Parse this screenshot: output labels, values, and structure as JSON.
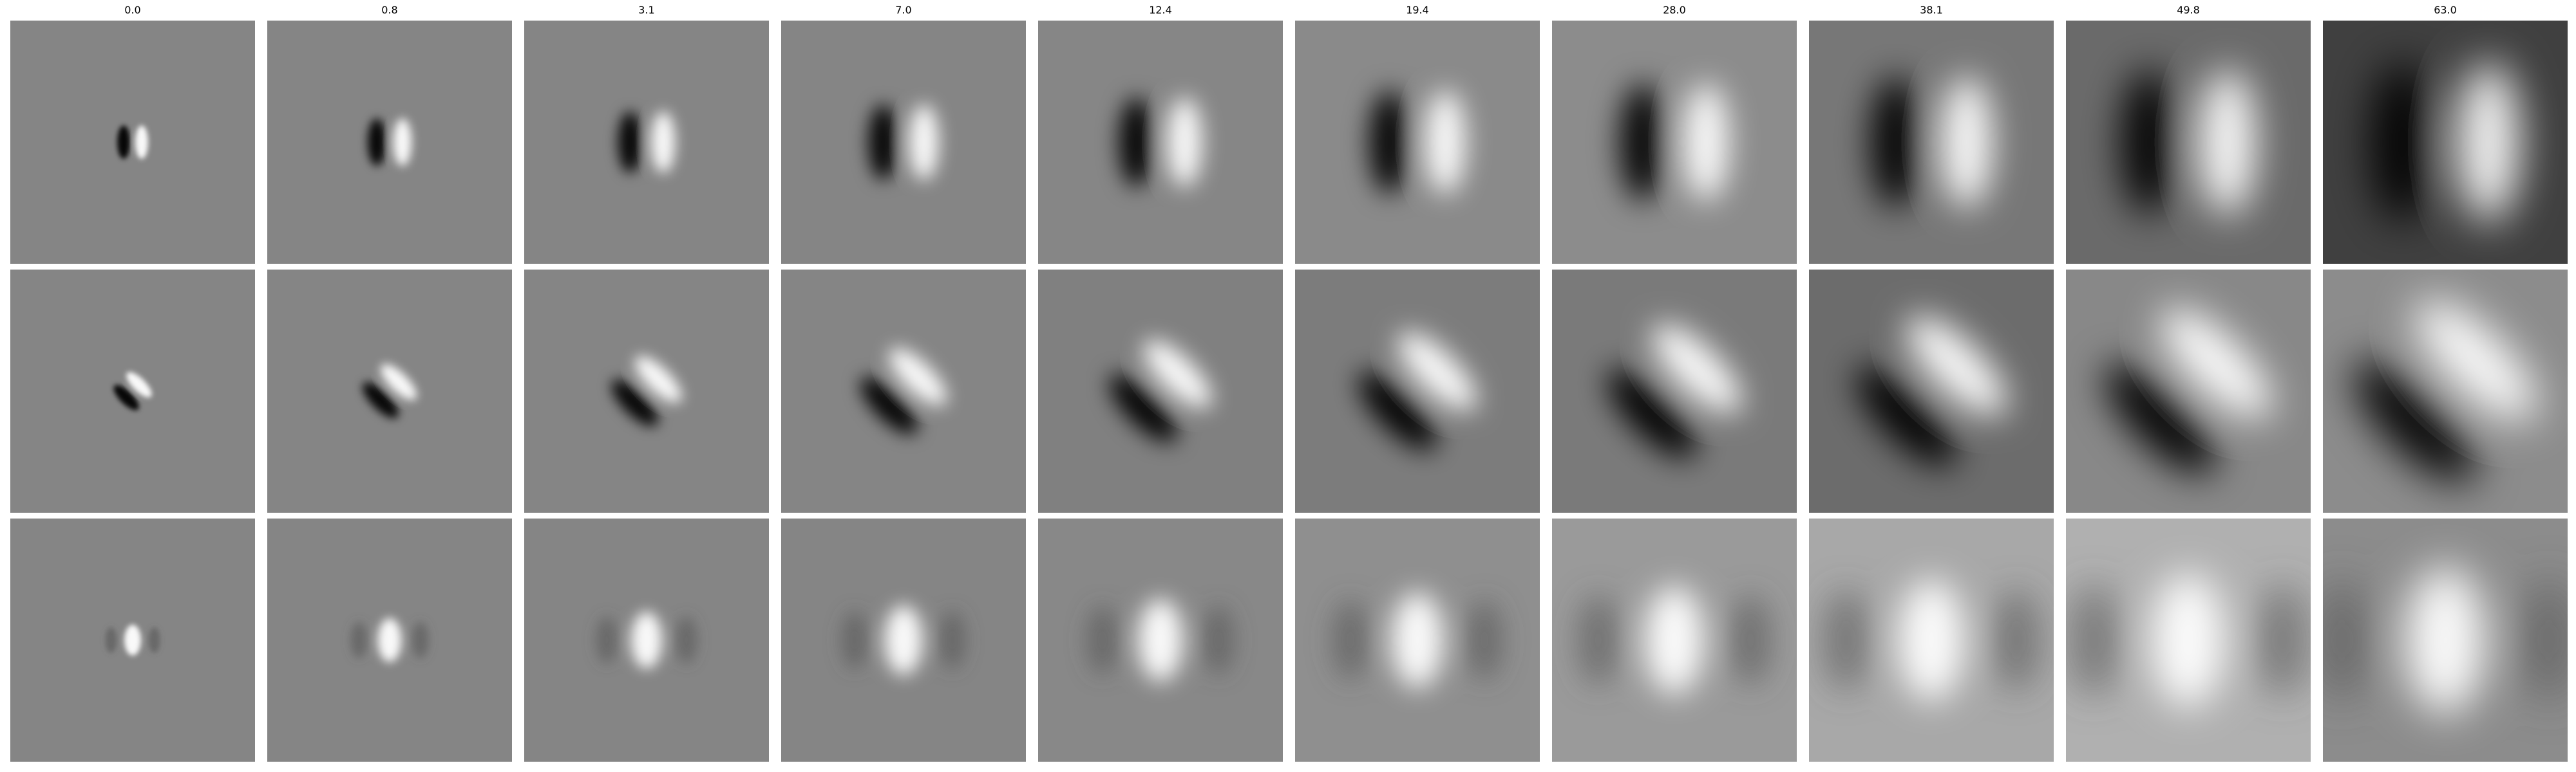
{
  "figure": {
    "column_titles": [
      "0.0",
      "0.8",
      "3.1",
      "7.0",
      "12.4",
      "19.4",
      "28.0",
      "38.1",
      "49.8",
      "63.0"
    ],
    "rows": [
      {
        "name": "row-1",
        "orientation_deg": 90,
        "polarity": [
          1,
          1,
          1,
          1,
          1,
          1,
          1,
          1,
          1,
          1
        ],
        "background": [
          "#858585",
          "#858585",
          "#858585",
          "#858585",
          "#868686",
          "#8a8a8a",
          "#8c8c8c",
          "#777777",
          "#6a6a6a",
          "#404040"
        ]
      },
      {
        "name": "row-2",
        "orientation_deg": 45,
        "polarity": [
          1,
          1,
          1,
          1,
          1,
          1,
          1,
          1,
          1,
          1
        ],
        "background": [
          "#858585",
          "#858585",
          "#858585",
          "#858585",
          "#808080",
          "#7c7c7c",
          "#7a7a7a",
          "#6c6c6c",
          "#888888",
          "#8c8c8c"
        ]
      },
      {
        "name": "row-3",
        "orientation_deg": 90,
        "polarity": [
          0,
          0,
          0,
          0,
          0,
          0,
          0,
          0,
          0,
          0
        ],
        "background": [
          "#858585",
          "#858585",
          "#858585",
          "#858585",
          "#888888",
          "#8f8f8f",
          "#9a9a9a",
          "#a8a8a8",
          "#b0b0b0",
          "#8c8c8c"
        ]
      }
    ]
  }
}
